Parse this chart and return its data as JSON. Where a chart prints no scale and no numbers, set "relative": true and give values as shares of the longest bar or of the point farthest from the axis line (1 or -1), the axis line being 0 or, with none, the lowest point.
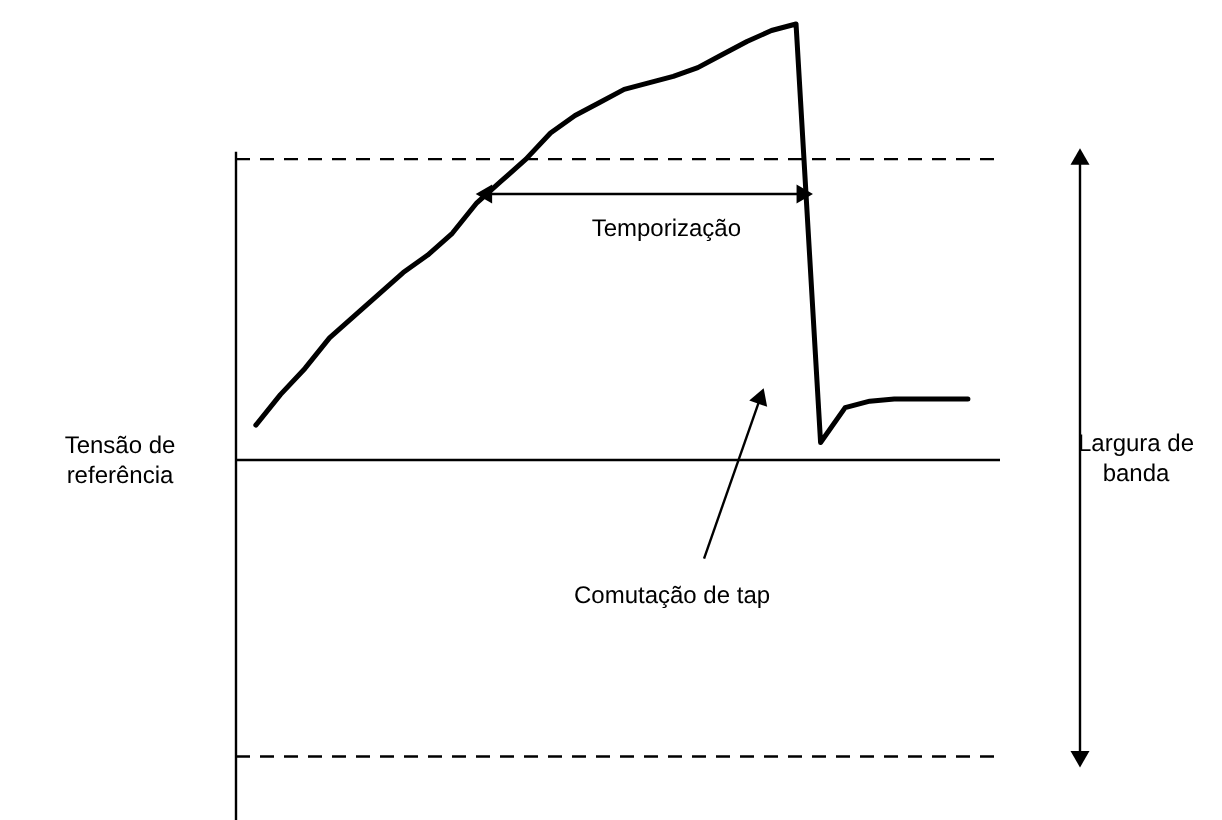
{
  "chart_data": {
    "type": "line",
    "relative": true,
    "categories": [
      null,
      null,
      null,
      null,
      null,
      null,
      null,
      null,
      null,
      null,
      null,
      null,
      null,
      null,
      null,
      null,
      null,
      null,
      null,
      null,
      null,
      null,
      null,
      null,
      null,
      null,
      null,
      null,
      null,
      null
    ],
    "series": [
      {
        "color": "#000000",
        "values": [
          0.08,
          0.15,
          0.21,
          0.28,
          0.33,
          0.38,
          0.43,
          0.47,
          0.52,
          0.59,
          0.64,
          0.69,
          0.75,
          0.79,
          0.82,
          0.85,
          0.865,
          0.88,
          0.9,
          0.93,
          0.96,
          0.985,
          1,
          0.04,
          0.12,
          0.135,
          0.14,
          0.14,
          0.14,
          0.14
        ]
      }
    ],
    "ref_lines": [
      {
        "axis": "y",
        "value": 0,
        "label": "Tensão de referência"
      },
      {
        "axis": "y",
        "value": 0.69,
        "line_style": "dashed"
      },
      {
        "axis": "y",
        "value": -0.68,
        "line_style": "dashed"
      }
    ],
    "annotations": [
      "Temporização",
      "Comutação de tap",
      "Largura de banda"
    ],
    "marker": "none",
    "line_style": "solid"
  }
}
